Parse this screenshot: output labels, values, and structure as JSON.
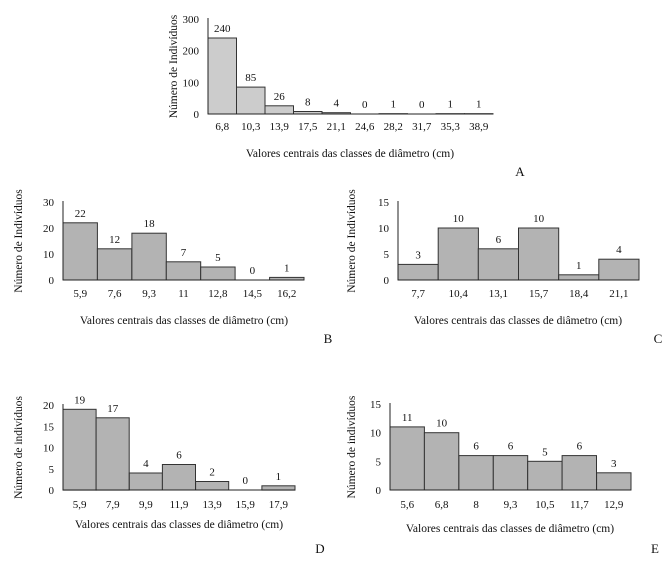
{
  "chart_data": [
    {
      "type": "bar",
      "panel": "A",
      "title": "",
      "categories": [
        "6,8",
        "10,3",
        "13,9",
        "17,5",
        "21,1",
        "24,6",
        "28,2",
        "31,7",
        "35,3",
        "38,9"
      ],
      "values": [
        240,
        85,
        26,
        8,
        4,
        0,
        1,
        0,
        1,
        1
      ],
      "ylim": [
        0,
        300
      ],
      "yticks": [
        "0",
        "100",
        "200",
        "300"
      ],
      "xlabel": "Valores centrais das classes de diâmetro (cm)",
      "ylabel": "Número de Indivíduos",
      "bar_color": "#cccccc"
    },
    {
      "type": "bar",
      "panel": "B",
      "title": "",
      "categories": [
        "5,9",
        "7,6",
        "9,3",
        "11",
        "12,8",
        "14,5",
        "16,2"
      ],
      "values": [
        22,
        12,
        18,
        7,
        5,
        0,
        1
      ],
      "ylim": [
        0,
        30
      ],
      "yticks": [
        "0",
        "10",
        "20",
        "30"
      ],
      "xlabel": "Valores centrais das classes de diâmetro (cm)",
      "ylabel": "Número de Indivíduos",
      "bar_color": "#b3b3b3"
    },
    {
      "type": "bar",
      "panel": "C",
      "title": "",
      "categories": [
        "7,7",
        "10,4",
        "13,1",
        "15,7",
        "18,4",
        "21,1"
      ],
      "values": [
        3,
        10,
        6,
        10,
        1,
        4
      ],
      "ylim": [
        0,
        15
      ],
      "yticks": [
        "0",
        "5",
        "10",
        "15"
      ],
      "xlabel": "Valores centrais das classes de diâmetro (cm)",
      "ylabel": "Número de Indivíduos",
      "bar_color": "#b3b3b3"
    },
    {
      "type": "bar",
      "panel": "D",
      "title": "",
      "categories": [
        "5,9",
        "7,9",
        "9,9",
        "11,9",
        "13,9",
        "15,9",
        "17,9"
      ],
      "values": [
        19,
        17,
        4,
        6,
        2,
        0,
        1
      ],
      "ylim": [
        0,
        20
      ],
      "yticks": [
        "0",
        "5",
        "10",
        "15",
        "20"
      ],
      "xlabel": "Valores centrais das classes de diâmetro (cm)",
      "ylabel": "Número de indivíduos",
      "bar_color": "#b3b3b3"
    },
    {
      "type": "bar",
      "panel": "E",
      "title": "",
      "categories": [
        "5,6",
        "6,8",
        "8",
        "9,3",
        "10,5",
        "11,7",
        "12,9"
      ],
      "values": [
        11,
        10,
        6,
        6,
        5,
        6,
        3
      ],
      "ylim": [
        0,
        15
      ],
      "yticks": [
        "0",
        "5",
        "10",
        "15"
      ],
      "xlabel": "Valores centrais das classes de diâmetro (cm)",
      "ylabel": "Número de indivíduos",
      "bar_color": "#b3b3b3"
    }
  ]
}
